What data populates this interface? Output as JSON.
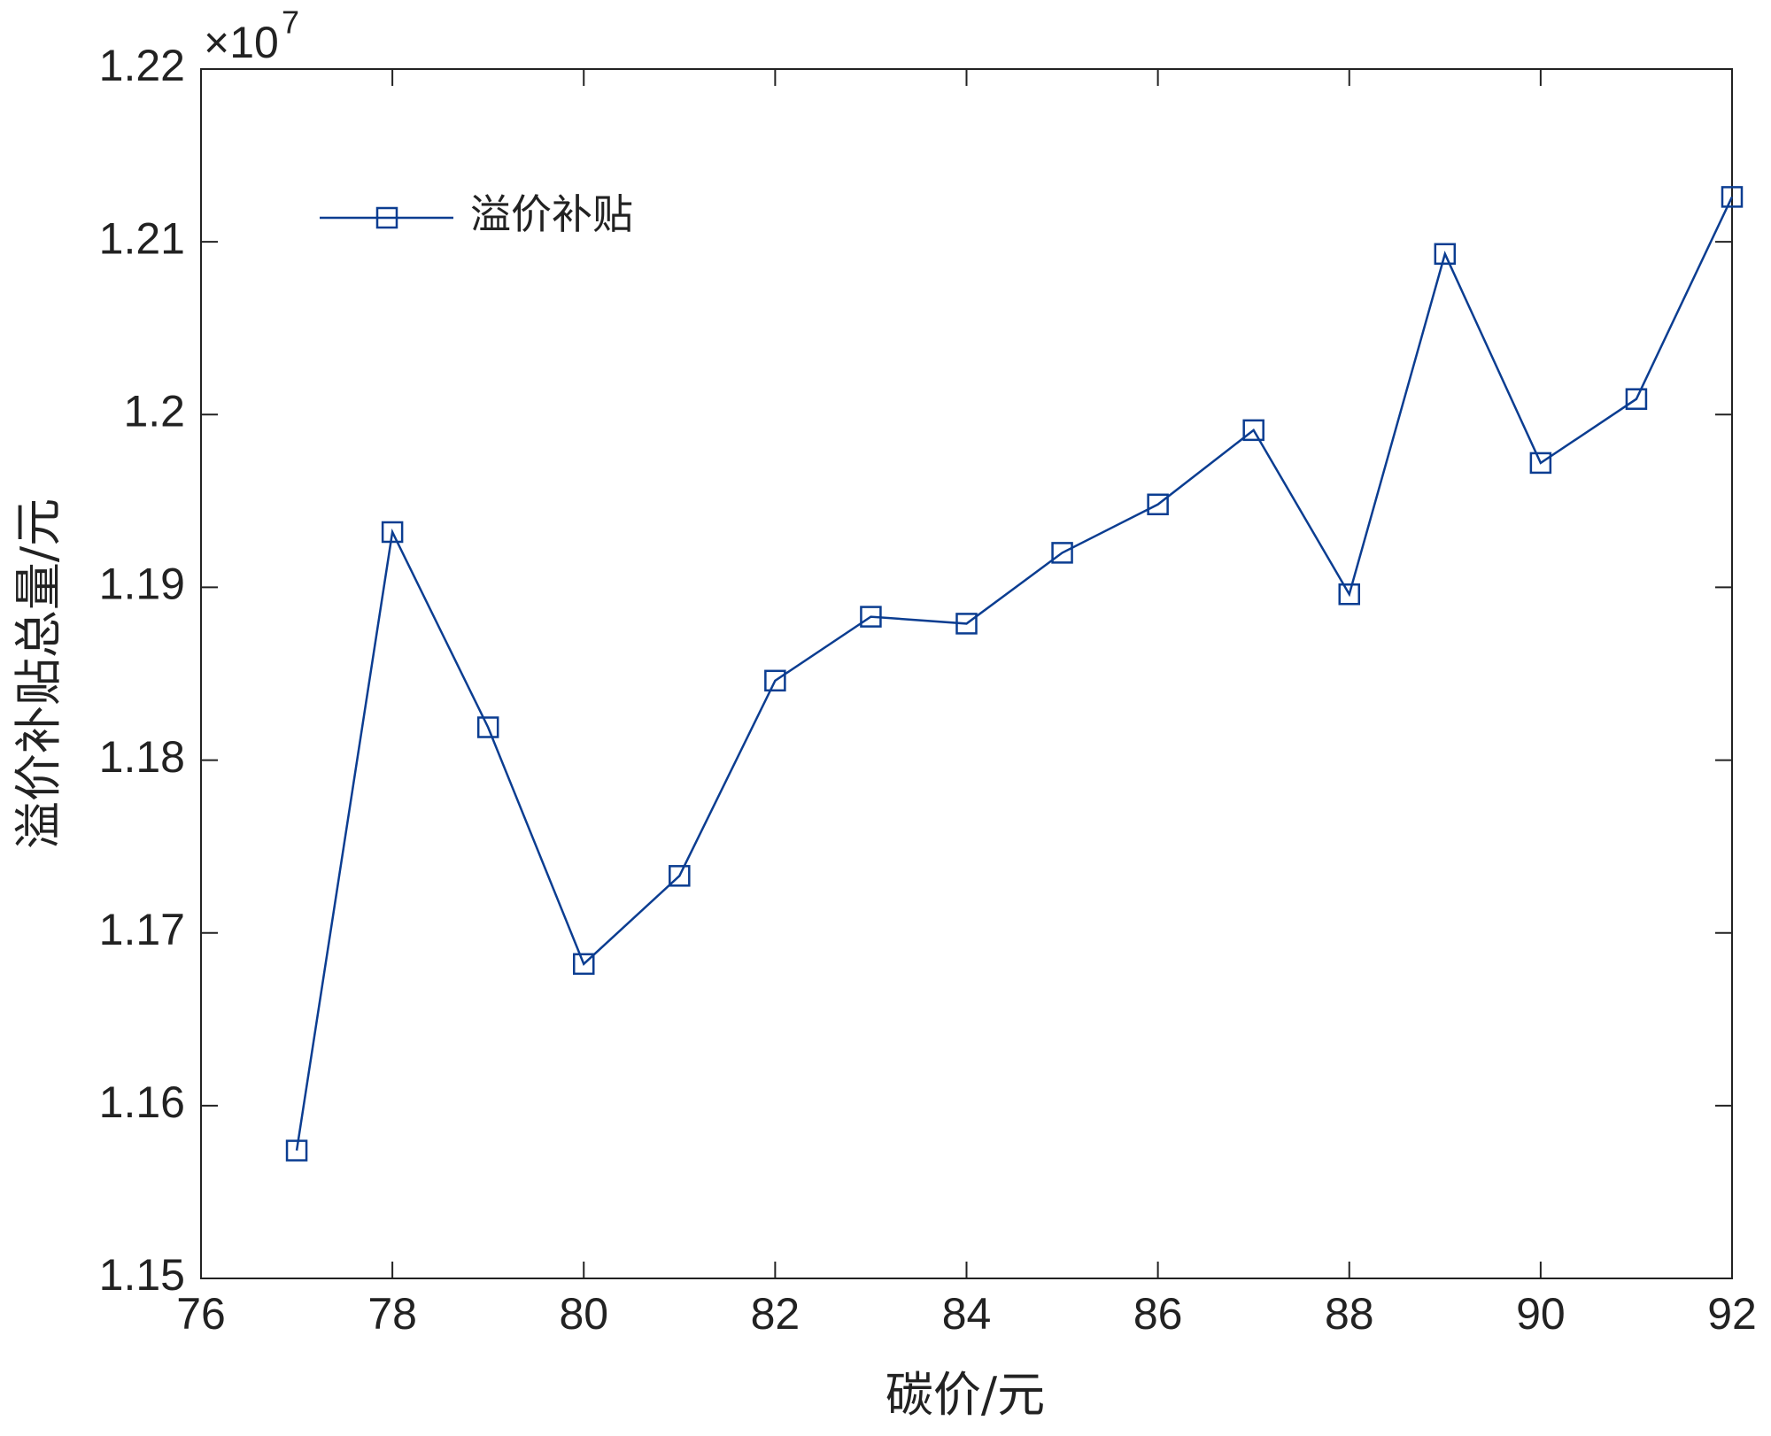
{
  "chart_data": {
    "type": "line",
    "xlabel": "碳价/元",
    "ylabel": "溢价补贴总量/元",
    "axis_exponent": {
      "base": "×10",
      "power": "7"
    },
    "x": [
      77,
      78,
      79,
      80,
      81,
      82,
      83,
      84,
      85,
      86,
      87,
      88,
      89,
      90,
      91,
      92
    ],
    "series": [
      {
        "name": "溢价补贴",
        "color": "#0b3d91",
        "marker": "square",
        "values": [
          1.1574,
          1.1932,
          1.1819,
          1.1682,
          1.1733,
          1.1846,
          1.1883,
          1.1879,
          1.192,
          1.1948,
          1.1991,
          1.1896,
          1.2093,
          1.1972,
          1.2009,
          1.2126
        ]
      }
    ],
    "xlim": [
      76,
      92
    ],
    "xticks": [
      76,
      78,
      80,
      82,
      84,
      86,
      88,
      90,
      92
    ],
    "ylim": [
      1.15,
      1.22
    ],
    "yticks": [
      1.15,
      1.16,
      1.17,
      1.18,
      1.19,
      1.2,
      1.21,
      1.22
    ],
    "grid": false,
    "legend": "upper left"
  }
}
